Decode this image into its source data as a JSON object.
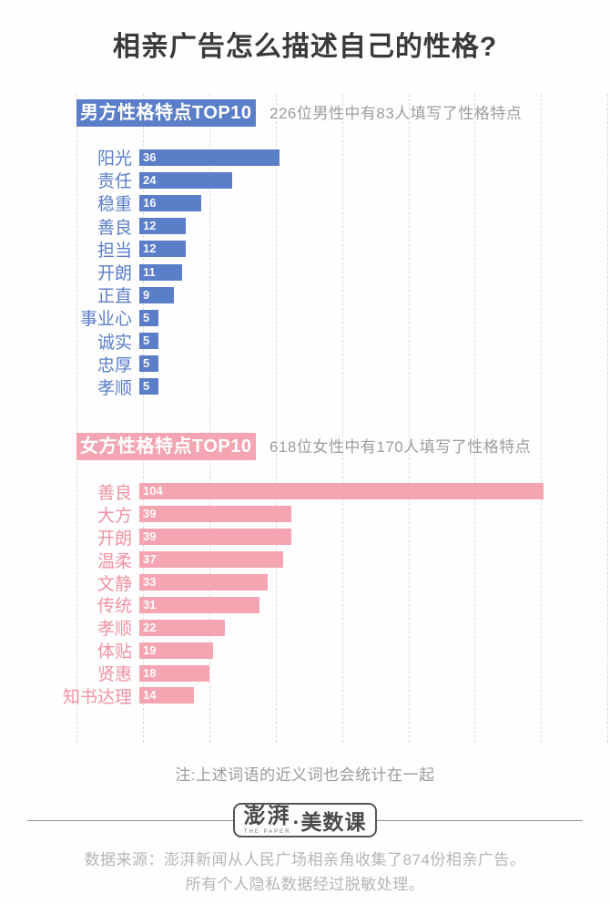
{
  "page_title": "相亲广告怎么描述自己的性格?",
  "note": "注:上述词语的近义词也会统计在一起",
  "footer": {
    "logo_cn": "澎湃",
    "logo_en": "THE PAPER",
    "logo_suffix": "·美数课",
    "source_line1": "数据来源：澎湃新闻从人民广场相亲角收集了874份相亲广告。",
    "source_line2": "所有个人隐私数据经过脱敏处理。"
  },
  "colors": {
    "male_accent": "#5b7ec8",
    "female_accent": "#f4a5b1",
    "female_label": "#f193a3",
    "title_text": "#3a3a3a",
    "muted_text": "#9d9d9d",
    "gridline": "#dcdcdc"
  },
  "chart_data": [
    {
      "type": "bar",
      "orientation": "horizontal",
      "title": "男方性格特点TOP10",
      "subtitle": "226位男性中有83人填写了性格特点",
      "color": "#5b7ec8",
      "label_color": "#5b7ec8",
      "categories": [
        "阳光",
        "责任",
        "稳重",
        "善良",
        "担当",
        "开朗",
        "正直",
        "事业心",
        "诚实",
        "忠厚",
        "孝顺"
      ],
      "values": [
        36,
        24,
        16,
        12,
        12,
        11,
        9,
        5,
        5,
        5,
        5
      ],
      "xlim": [
        0,
        110
      ],
      "grid": "vertical-dashed",
      "value_labels": "inside-left-white"
    },
    {
      "type": "bar",
      "orientation": "horizontal",
      "title": "女方性格特点TOP10",
      "subtitle": "618位女性中有170人填写了性格特点",
      "color": "#f4a5b1",
      "label_color": "#f193a3",
      "categories": [
        "善良",
        "大方",
        "开朗",
        "温柔",
        "文静",
        "传统",
        "孝顺",
        "体贴",
        "贤惠",
        "知书达理"
      ],
      "values": [
        104,
        39,
        39,
        37,
        33,
        31,
        22,
        19,
        18,
        14
      ],
      "xlim": [
        0,
        110
      ],
      "grid": "vertical-dashed",
      "value_labels": "inside-left-white"
    }
  ]
}
